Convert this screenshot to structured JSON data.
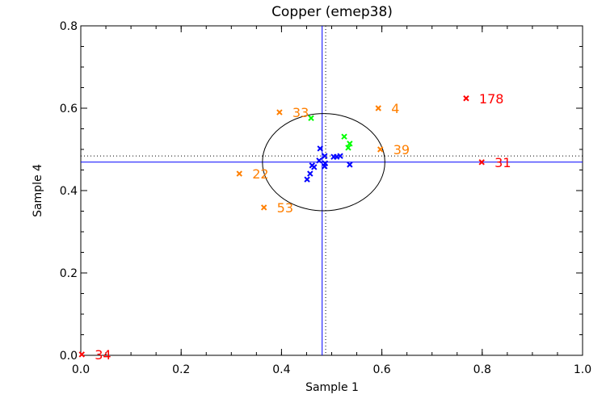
{
  "chart_data": {
    "type": "scatter",
    "title": "Copper (emep38)",
    "xlabel": "Sample 1",
    "ylabel": "Sample 4",
    "xlim": [
      0,
      1.0
    ],
    "ylim": [
      0,
      0.8
    ],
    "xticks": [
      "0.0",
      "0.2",
      "0.4",
      "0.6",
      "0.8",
      "1.0"
    ],
    "xtick_values": [
      0,
      0.2,
      0.4,
      0.6,
      0.8,
      1.0
    ],
    "yticks": [
      "0.0",
      "0.2",
      "0.4",
      "0.6",
      "0.8"
    ],
    "ytick_values": [
      0,
      0.2,
      0.4,
      0.6,
      0.8
    ],
    "reference_lines": {
      "solid": {
        "x": 0.481,
        "y": 0.469,
        "color": "#0000ff"
      },
      "dotted": {
        "x": 0.488,
        "y": 0.484,
        "color": "#000000"
      }
    },
    "ellipse": {
      "cx": 0.484,
      "cy": 0.469,
      "rx": 0.122,
      "ry": 0.118,
      "color": "#000000"
    },
    "series": [
      {
        "name": "outlier-red",
        "color": "#ff0000",
        "points": [
          {
            "x": 0.768,
            "y": 0.624,
            "label": "178"
          },
          {
            "x": 0.799,
            "y": 0.469,
            "label": "31"
          },
          {
            "x": 0.002,
            "y": 0.002,
            "label": "34"
          }
        ]
      },
      {
        "name": "outlier-orange",
        "color": "#ff7f00",
        "points": [
          {
            "x": 0.396,
            "y": 0.59,
            "label": "33"
          },
          {
            "x": 0.593,
            "y": 0.6,
            "label": "4"
          },
          {
            "x": 0.597,
            "y": 0.5,
            "label": "39"
          },
          {
            "x": 0.316,
            "y": 0.441,
            "label": "22"
          },
          {
            "x": 0.365,
            "y": 0.359,
            "label": "53"
          }
        ]
      },
      {
        "name": "green",
        "color": "#00ff00",
        "points": [
          {
            "x": 0.459,
            "y": 0.576
          },
          {
            "x": 0.525,
            "y": 0.531
          },
          {
            "x": 0.536,
            "y": 0.514
          },
          {
            "x": 0.533,
            "y": 0.504
          }
        ]
      },
      {
        "name": "blue",
        "color": "#0000ff",
        "points": [
          {
            "x": 0.477,
            "y": 0.502
          },
          {
            "x": 0.486,
            "y": 0.484
          },
          {
            "x": 0.504,
            "y": 0.482
          },
          {
            "x": 0.51,
            "y": 0.482
          },
          {
            "x": 0.517,
            "y": 0.484
          },
          {
            "x": 0.475,
            "y": 0.473
          },
          {
            "x": 0.486,
            "y": 0.459
          },
          {
            "x": 0.461,
            "y": 0.461
          },
          {
            "x": 0.465,
            "y": 0.457
          },
          {
            "x": 0.536,
            "y": 0.463
          },
          {
            "x": 0.457,
            "y": 0.441
          },
          {
            "x": 0.451,
            "y": 0.427
          },
          {
            "x": 0.487,
            "y": 0.466
          }
        ]
      }
    ]
  }
}
